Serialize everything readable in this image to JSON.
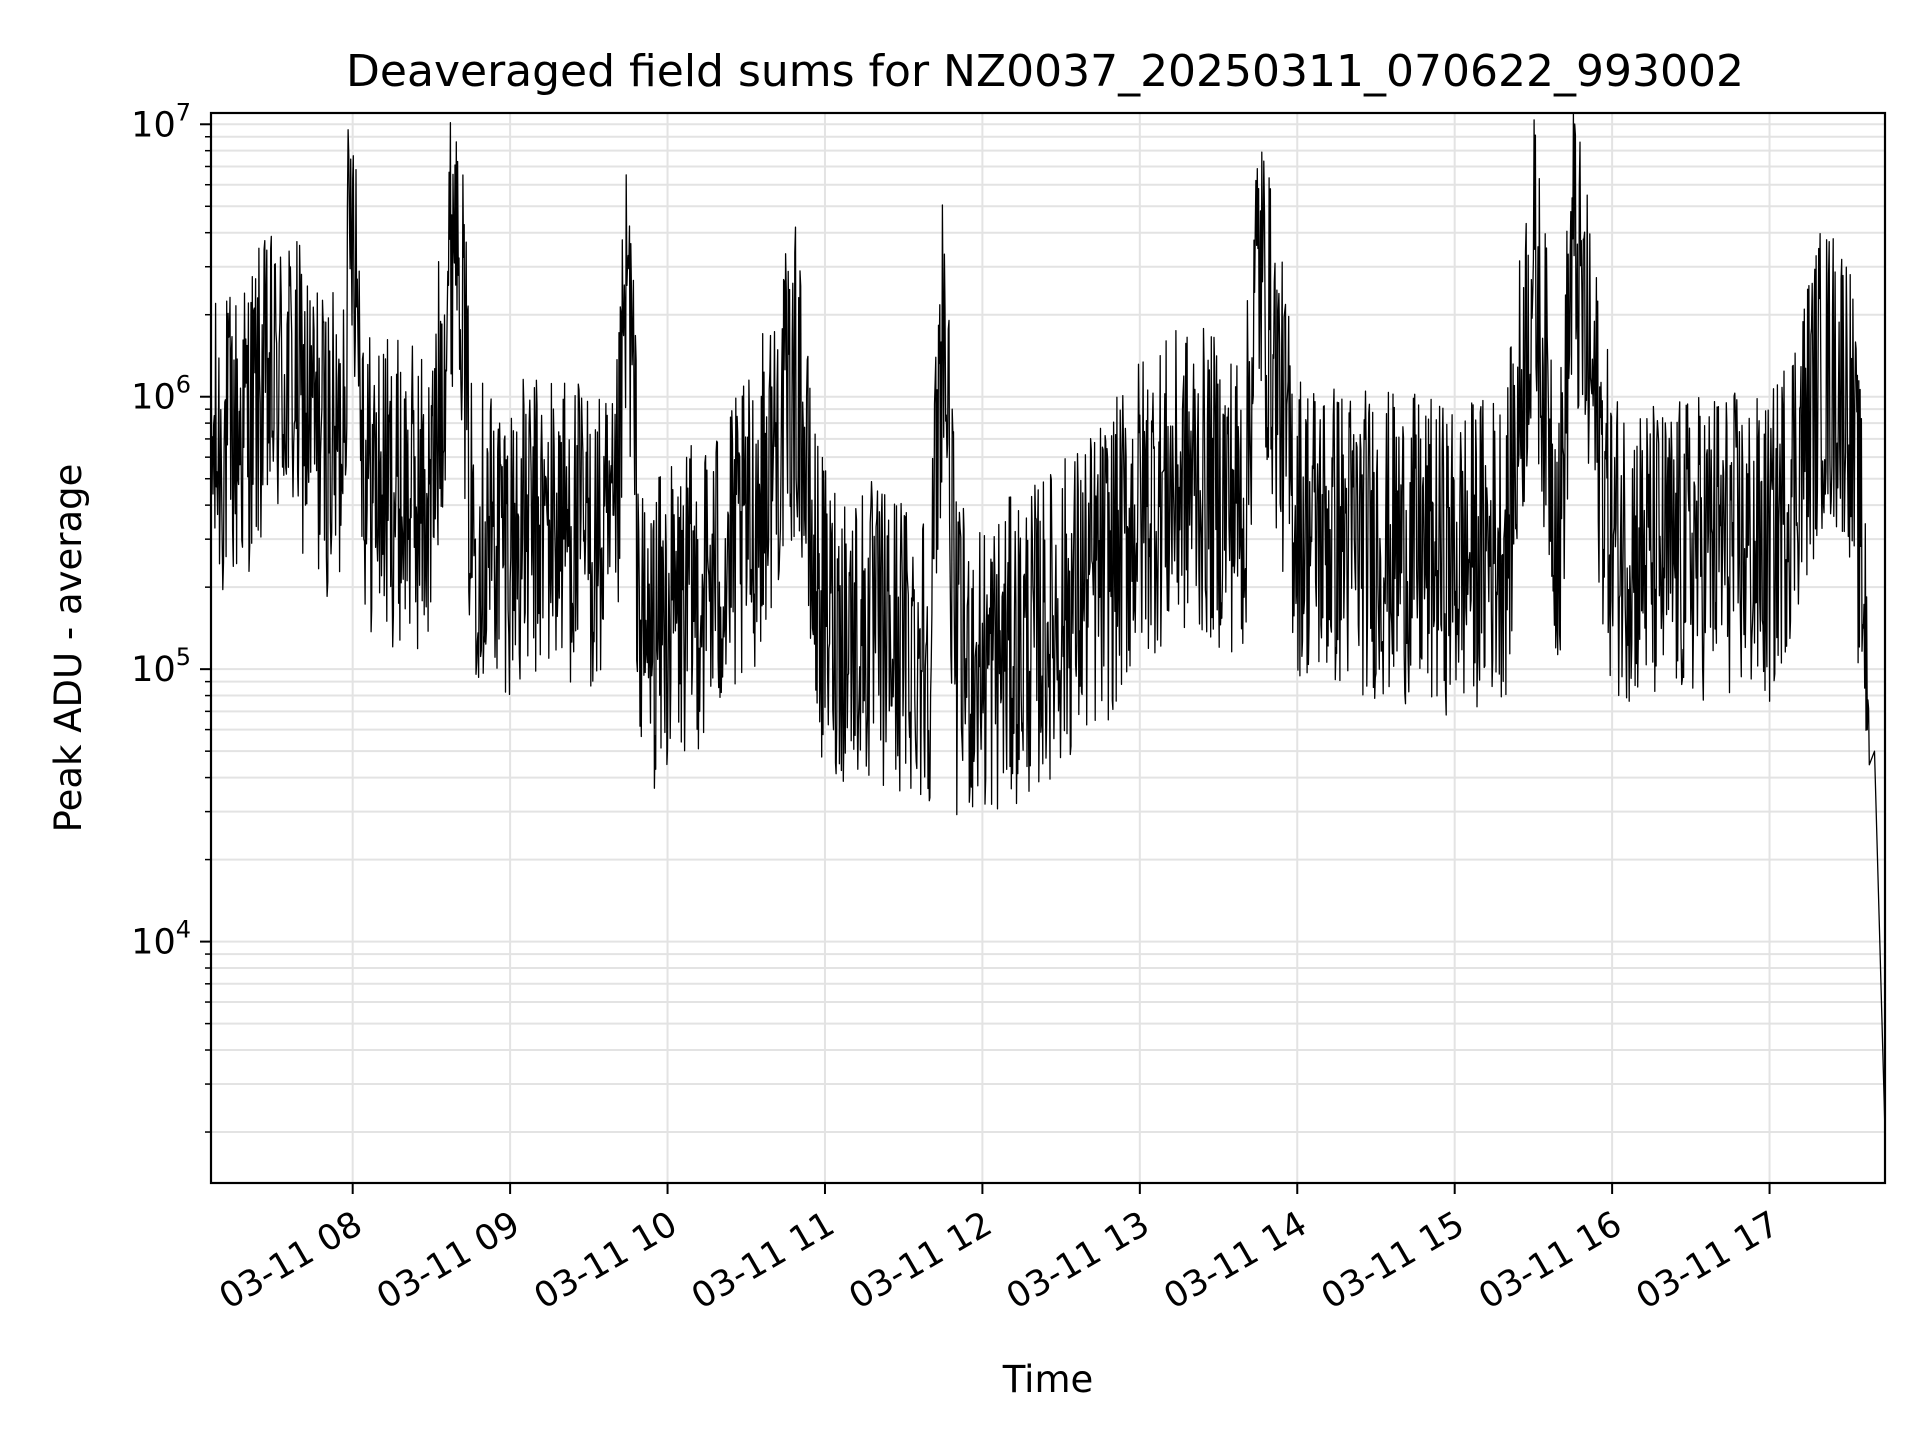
{
  "chart_data": {
    "type": "line",
    "title": "Deaveraged field sums for NZ0037_20250311_070622_993002",
    "xlabel": "Time",
    "ylabel": "Peak ADU - average",
    "yscale": "log",
    "ylim": [
      1300,
      11000000
    ],
    "xlim": [
      "2025-03-11 07:06",
      "2025-03-11 17:44"
    ],
    "grid": true,
    "line_color": "#000000",
    "x_ticks": [
      "03-11 08",
      "03-11 09",
      "03-11 10",
      "03-11 11",
      "03-11 12",
      "03-11 13",
      "03-11 14",
      "03-11 15",
      "03-11 16",
      "03-11 17"
    ],
    "y_ticks": [
      {
        "base": "10",
        "exp": "4",
        "value": 10000
      },
      {
        "base": "10",
        "exp": "5",
        "value": 100000
      },
      {
        "base": "10",
        "exp": "6",
        "value": 1000000
      },
      {
        "base": "10",
        "exp": "7",
        "value": 10000000
      }
    ],
    "series": [
      {
        "points": [
          [
            "07:06",
            600000
          ],
          [
            "07:15",
            700000
          ],
          [
            "07:25",
            1000000
          ],
          [
            "07:35",
            1200000
          ],
          [
            "07:45",
            800000
          ],
          [
            "07:55",
            600000
          ],
          [
            "08:00",
            6300000
          ],
          [
            "08:05",
            500000
          ],
          [
            "08:15",
            450000
          ],
          [
            "08:30",
            400000
          ],
          [
            "08:40",
            7300000
          ],
          [
            "08:45",
            350000
          ],
          [
            "09:00",
            300000
          ],
          [
            "09:20",
            350000
          ],
          [
            "09:40",
            250000
          ],
          [
            "09:45",
            3300000
          ],
          [
            "09:50",
            120000
          ],
          [
            "10:00",
            150000
          ],
          [
            "10:15",
            200000
          ],
          [
            "10:30",
            300000
          ],
          [
            "10:45",
            900000
          ],
          [
            "10:50",
            1200000
          ],
          [
            "10:55",
            250000
          ],
          [
            "11:00",
            150000
          ],
          [
            "11:20",
            130000
          ],
          [
            "11:40",
            120000
          ],
          [
            "11:45",
            2300000
          ],
          [
            "11:50",
            110000
          ],
          [
            "12:00",
            100000
          ],
          [
            "12:20",
            130000
          ],
          [
            "12:40",
            200000
          ],
          [
            "12:50",
            250000
          ],
          [
            "13:00",
            400000
          ],
          [
            "13:20",
            500000
          ],
          [
            "13:40",
            400000
          ],
          [
            "13:45",
            3500000
          ],
          [
            "14:00",
            350000
          ],
          [
            "14:20",
            300000
          ],
          [
            "14:40",
            280000
          ],
          [
            "15:00",
            250000
          ],
          [
            "15:20",
            300000
          ],
          [
            "15:30",
            3200000
          ],
          [
            "15:40",
            300000
          ],
          [
            "15:45",
            3800000
          ],
          [
            "16:00",
            300000
          ],
          [
            "16:20",
            250000
          ],
          [
            "16:40",
            300000
          ],
          [
            "17:00",
            260000
          ],
          [
            "17:20",
            1200000
          ],
          [
            "17:30",
            1100000
          ],
          [
            "17:35",
            250000
          ],
          [
            "17:38",
            100000
          ],
          [
            "17:40",
            50000
          ],
          [
            "17:42",
            10000
          ],
          [
            "17:44",
            2000
          ]
        ]
      }
    ]
  }
}
